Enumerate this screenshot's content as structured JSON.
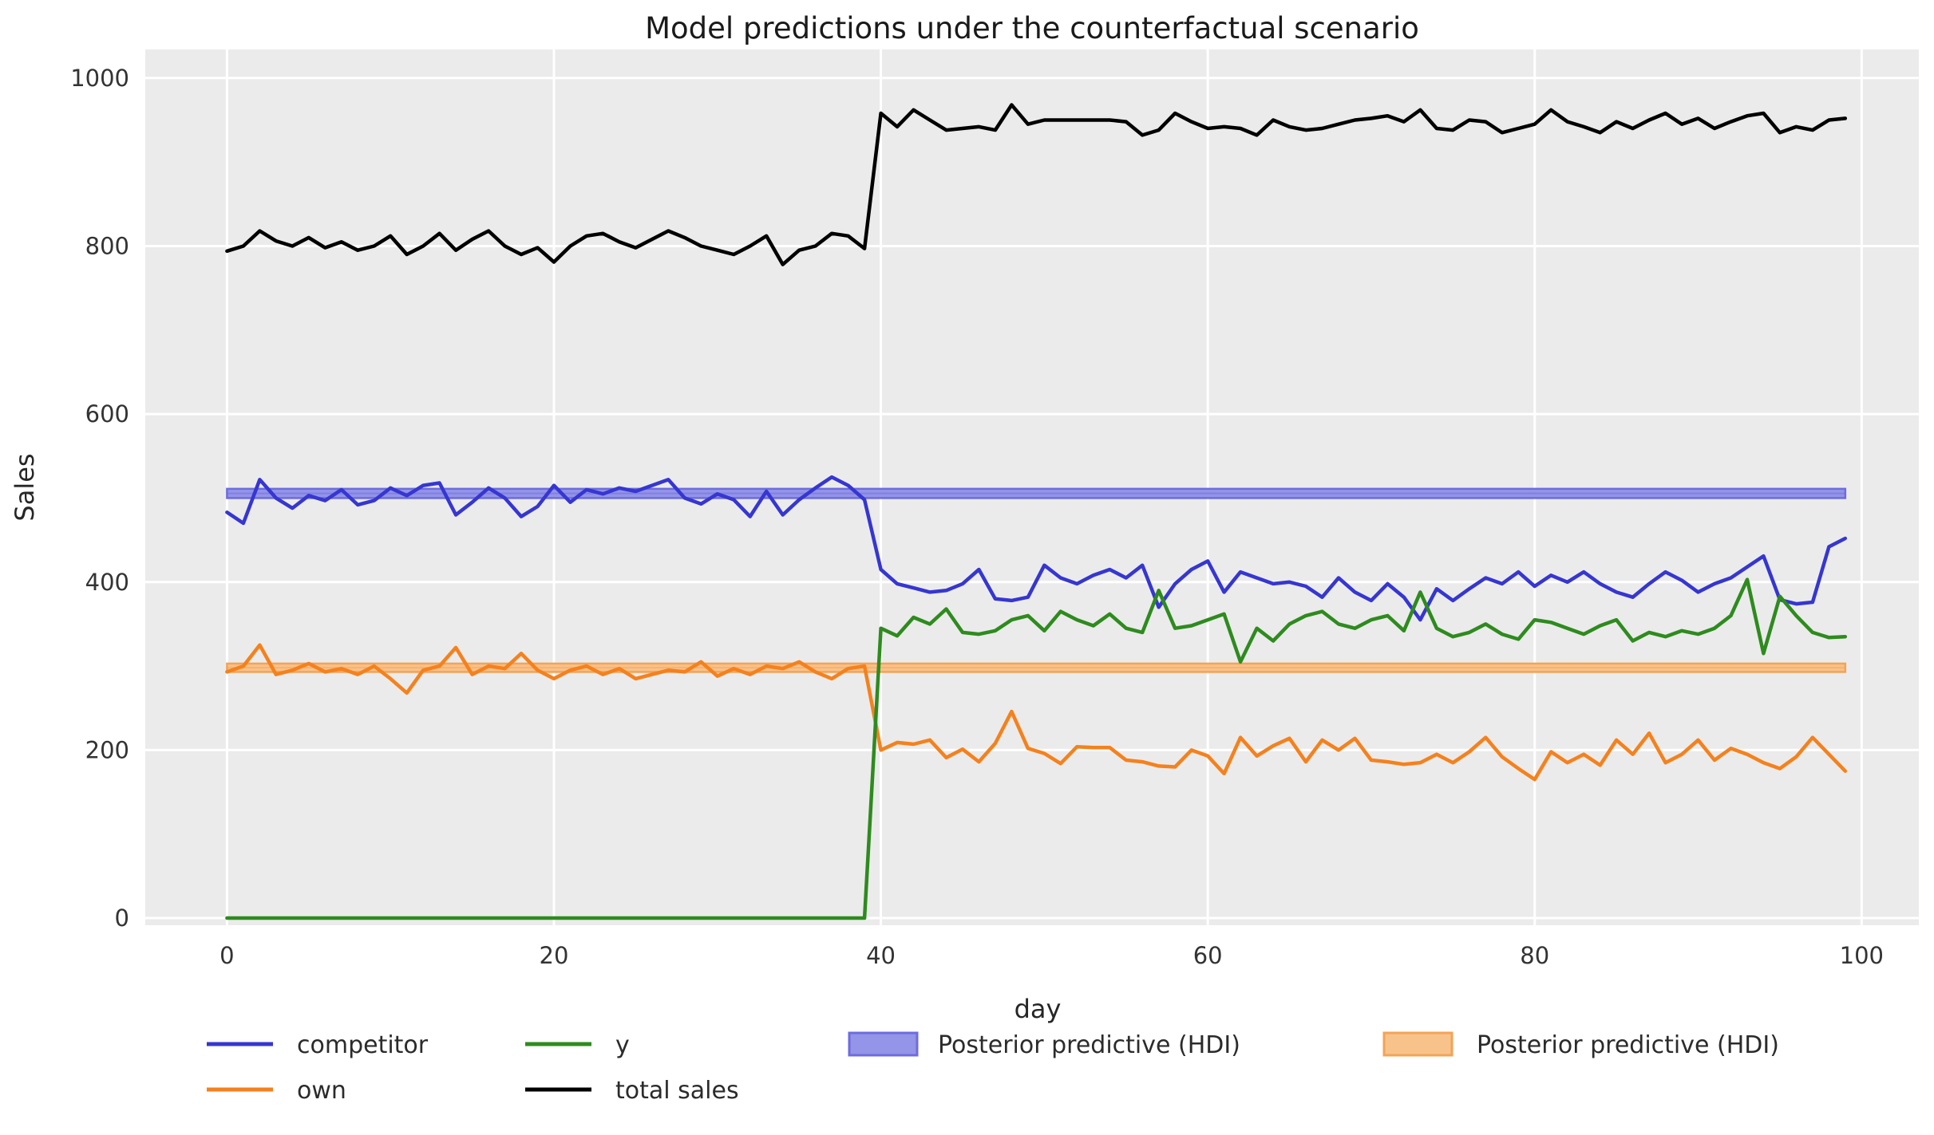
{
  "figure": {
    "title": "Model predictions under the counterfactual scenario",
    "xlabel": "day",
    "ylabel": "Sales",
    "background_color": "#ffffff",
    "axes_background_color": "#ebebeb",
    "grid_color": "#ffffff"
  },
  "legend": {
    "entries": [
      {
        "label": "competitor",
        "type": "line",
        "color": "#3636d2"
      },
      {
        "label": "own",
        "type": "line",
        "color": "#f5811d"
      },
      {
        "label": "y",
        "type": "line",
        "color": "#2e8b1e"
      },
      {
        "label": "total sales",
        "type": "line",
        "color": "#000000"
      },
      {
        "label": "Posterior predictive (HDI)",
        "type": "patch",
        "color": "#9494e8",
        "border": "#6c6cdf"
      },
      {
        "label": "Posterior predictive (HDI)",
        "type": "patch",
        "color": "#f8c28b",
        "border": "#f3a356"
      }
    ]
  },
  "chart_data": {
    "type": "line",
    "title": "Model predictions under the counterfactual scenario",
    "xlabel": "day",
    "ylabel": "Sales",
    "xlim": [
      -5,
      103.5
    ],
    "ylim": [
      -8.5,
      1034
    ],
    "x_ticks": [
      0,
      20,
      40,
      60,
      80,
      100
    ],
    "y_ticks": [
      0,
      200,
      400,
      600,
      800,
      1000
    ],
    "grid": true,
    "legend_position": "below",
    "treatment_day": 40,
    "x": [
      0,
      1,
      2,
      3,
      4,
      5,
      6,
      7,
      8,
      9,
      10,
      11,
      12,
      13,
      14,
      15,
      16,
      17,
      18,
      19,
      20,
      21,
      22,
      23,
      24,
      25,
      26,
      27,
      28,
      29,
      30,
      31,
      32,
      33,
      34,
      35,
      36,
      37,
      38,
      39,
      40,
      41,
      42,
      43,
      44,
      45,
      46,
      47,
      48,
      49,
      50,
      51,
      52,
      53,
      54,
      55,
      56,
      57,
      58,
      59,
      60,
      61,
      62,
      63,
      64,
      65,
      66,
      67,
      68,
      69,
      70,
      71,
      72,
      73,
      74,
      75,
      76,
      77,
      78,
      79,
      80,
      81,
      82,
      83,
      84,
      85,
      86,
      87,
      88,
      89,
      90,
      91,
      92,
      93,
      94,
      95,
      96,
      97,
      98,
      99
    ],
    "series": [
      {
        "name": "competitor",
        "color": "#3636d2",
        "values": [
          483,
          470,
          522,
          500,
          488,
          503,
          497,
          510,
          492,
          497,
          512,
          503,
          515,
          518,
          480,
          495,
          512,
          500,
          478,
          490,
          515,
          495,
          510,
          505,
          512,
          508,
          515,
          522,
          500,
          493,
          505,
          498,
          478,
          508,
          480,
          498,
          512,
          525,
          515,
          498,
          415,
          398,
          393,
          388,
          390,
          398,
          415,
          380,
          378,
          382,
          420,
          405,
          398,
          408,
          415,
          405,
          420,
          370,
          398,
          415,
          425,
          388,
          412,
          405,
          398,
          400,
          395,
          382,
          405,
          388,
          378,
          398,
          382,
          355,
          392,
          378,
          392,
          405,
          398,
          412,
          395,
          408,
          400,
          412,
          398,
          388,
          382,
          398,
          412,
          402,
          388,
          398,
          405,
          418,
          431,
          379,
          374,
          376,
          442,
          452
        ]
      },
      {
        "name": "own",
        "color": "#f5811d",
        "values": [
          293,
          300,
          325,
          290,
          295,
          303,
          293,
          297,
          290,
          300,
          285,
          268,
          295,
          300,
          322,
          290,
          300,
          297,
          315,
          295,
          285,
          295,
          300,
          290,
          297,
          285,
          290,
          295,
          293,
          305,
          288,
          297,
          290,
          300,
          297,
          305,
          293,
          285,
          297,
          300,
          200,
          209,
          207,
          212,
          191,
          201,
          186,
          208,
          246,
          202,
          196,
          184,
          204,
          203,
          203,
          188,
          186,
          181,
          180,
          200,
          193,
          172,
          215,
          193,
          205,
          214,
          186,
          212,
          200,
          214,
          188,
          186,
          183,
          185,
          195,
          185,
          198,
          215,
          192,
          178,
          165,
          198,
          185,
          195,
          182,
          212,
          195,
          220,
          185,
          195,
          212,
          188,
          202,
          195,
          185,
          178,
          192,
          215,
          195,
          175
        ]
      },
      {
        "name": "y",
        "color": "#2e8b1e",
        "values": [
          0,
          0,
          0,
          0,
          0,
          0,
          0,
          0,
          0,
          0,
          0,
          0,
          0,
          0,
          0,
          0,
          0,
          0,
          0,
          0,
          0,
          0,
          0,
          0,
          0,
          0,
          0,
          0,
          0,
          0,
          0,
          0,
          0,
          0,
          0,
          0,
          0,
          0,
          0,
          0,
          345,
          336,
          358,
          350,
          368,
          340,
          338,
          342,
          355,
          360,
          342,
          365,
          355,
          348,
          362,
          345,
          340,
          390,
          345,
          348,
          355,
          362,
          305,
          345,
          330,
          350,
          360,
          365,
          350,
          345,
          355,
          360,
          342,
          388,
          345,
          335,
          340,
          350,
          338,
          332,
          355,
          352,
          345,
          338,
          348,
          355,
          330,
          340,
          335,
          342,
          338,
          345,
          360,
          403,
          315,
          383,
          360,
          340,
          334,
          335
        ]
      },
      {
        "name": "total sales",
        "color": "#000000",
        "values": [
          794,
          800,
          818,
          806,
          800,
          810,
          798,
          805,
          795,
          800,
          812,
          790,
          800,
          815,
          795,
          808,
          818,
          800,
          790,
          798,
          781,
          800,
          812,
          815,
          805,
          798,
          808,
          818,
          810,
          800,
          795,
          790,
          800,
          812,
          778,
          795,
          800,
          815,
          812,
          797,
          958,
          942,
          962,
          950,
          938,
          940,
          942,
          938,
          968,
          945,
          950,
          950,
          950,
          950,
          950,
          948,
          932,
          938,
          958,
          948,
          940,
          942,
          940,
          932,
          950,
          942,
          938,
          940,
          945,
          950,
          952,
          955,
          948,
          962,
          940,
          938,
          950,
          948,
          935,
          940,
          945,
          962,
          948,
          942,
          935,
          948,
          940,
          950,
          958,
          945,
          952,
          940,
          948,
          955,
          958,
          935,
          942,
          938,
          950,
          952
        ]
      }
    ],
    "hdi_bands": [
      {
        "name": "Posterior predictive (HDI) - competitor",
        "x_start": 0,
        "x_end": 99,
        "lo": 500,
        "hi": 511,
        "fill": "#9494e8",
        "edge": "#6c6cdf"
      },
      {
        "name": "Posterior predictive (HDI) - own",
        "x_start": 0,
        "x_end": 99,
        "lo": 293,
        "hi": 303,
        "fill": "#f8c28b",
        "edge": "#f3a356"
      }
    ]
  }
}
